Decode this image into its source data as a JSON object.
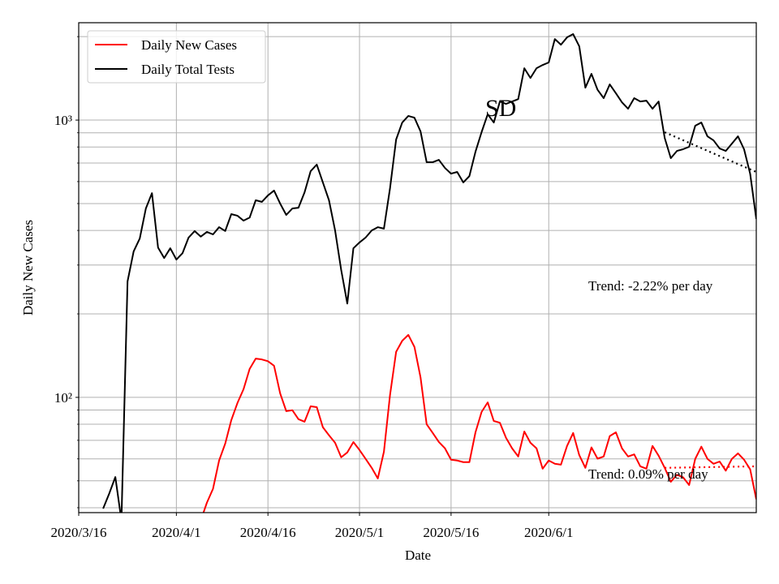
{
  "chart_data": {
    "type": "line",
    "x_label": "Date",
    "y_label": "Daily New Cases",
    "log_y": true,
    "grid": true,
    "legend": "upper left",
    "xlim": [
      "2020/3/16",
      "2020/7/5"
    ],
    "xticks": [
      "2020/3/16",
      "2020/4/1",
      "2020/4/16",
      "2020/5/1",
      "2020/5/16",
      "2020/6/1"
    ],
    "ylim": [
      38.4,
      2245
    ],
    "yticks": [
      {
        "value": 100,
        "label": "10²"
      },
      {
        "value": 1000,
        "label": "10³"
      }
    ],
    "yminor_ticks": [
      40,
      50,
      60,
      70,
      80,
      90,
      200,
      300,
      400,
      500,
      600,
      700,
      800,
      900,
      2000
    ],
    "x": [
      "2020/3/20",
      "2020/3/21",
      "2020/3/22",
      "2020/3/23",
      "2020/3/24",
      "2020/3/25",
      "2020/3/26",
      "2020/3/27",
      "2020/3/28",
      "2020/3/29",
      "2020/3/30",
      "2020/3/31",
      "2020/4/1",
      "2020/4/2",
      "2020/4/3",
      "2020/4/4",
      "2020/4/5",
      "2020/4/6",
      "2020/4/7",
      "2020/4/8",
      "2020/4/9",
      "2020/4/10",
      "2020/4/11",
      "2020/4/12",
      "2020/4/13",
      "2020/4/14",
      "2020/4/15",
      "2020/4/16",
      "2020/4/17",
      "2020/4/18",
      "2020/4/19",
      "2020/4/20",
      "2020/4/21",
      "2020/4/22",
      "2020/4/23",
      "2020/4/24",
      "2020/4/25",
      "2020/4/26",
      "2020/4/27",
      "2020/4/28",
      "2020/4/29",
      "2020/4/30",
      "2020/5/1",
      "2020/5/2",
      "2020/5/3",
      "2020/5/4",
      "2020/5/5",
      "2020/5/6",
      "2020/5/7",
      "2020/5/8",
      "2020/5/9",
      "2020/5/10",
      "2020/5/11",
      "2020/5/12",
      "2020/5/13",
      "2020/5/14",
      "2020/5/15",
      "2020/5/16",
      "2020/5/17",
      "2020/5/18",
      "2020/5/19",
      "2020/5/20",
      "2020/5/21",
      "2020/5/22",
      "2020/5/23",
      "2020/5/24",
      "2020/5/25",
      "2020/5/26",
      "2020/5/27",
      "2020/5/28",
      "2020/5/29",
      "2020/5/30",
      "2020/5/31",
      "2020/6/1",
      "2020/6/2",
      "2020/6/3",
      "2020/6/4",
      "2020/6/5",
      "2020/6/6",
      "2020/6/7",
      "2020/6/8",
      "2020/6/9",
      "2020/6/10",
      "2020/6/11",
      "2020/6/12",
      "2020/6/13",
      "2020/6/14",
      "2020/6/15",
      "2020/6/16",
      "2020/6/17",
      "2020/6/18",
      "2020/6/19",
      "2020/6/20",
      "2020/6/21",
      "2020/6/22",
      "2020/6/23",
      "2020/6/24",
      "2020/6/25",
      "2020/6/26",
      "2020/6/27",
      "2020/6/28",
      "2020/6/29",
      "2020/6/30",
      "2020/7/1",
      "2020/7/2",
      "2020/7/3",
      "2020/7/4",
      "2020/7/5"
    ],
    "series": [
      {
        "name": "Daily New Cases",
        "color": "#ff0000",
        "values": [
          null,
          null,
          null,
          null,
          null,
          null,
          null,
          null,
          null,
          null,
          null,
          null,
          null,
          null,
          null,
          null,
          36,
          41.7,
          46.8,
          59.2,
          68.1,
          82.8,
          95.4,
          107,
          126.6,
          138,
          137,
          135,
          130,
          103.4,
          89.2,
          89.9,
          83.4,
          81.7,
          92.9,
          92.2,
          78,
          73,
          68.6,
          60.8,
          63.3,
          69,
          64.6,
          60,
          55.7,
          51,
          63.7,
          102,
          146,
          160,
          168,
          152,
          118,
          80,
          74.4,
          69,
          65.5,
          59.6,
          59.2,
          58.4,
          58.4,
          74.8,
          88.6,
          95.9,
          82.2,
          81,
          71.5,
          65.5,
          61.2,
          75.3,
          68.6,
          65.5,
          55.3,
          59.2,
          57.6,
          57.2,
          66.8,
          74.4,
          61.9,
          55.7,
          66,
          60.1,
          61.2,
          72.5,
          74.8,
          65.5,
          61.2,
          62.3,
          56.4,
          55.3,
          66.8,
          61.6,
          55.7,
          49.6,
          52.6,
          51.5,
          48.3,
          60,
          66.4,
          60,
          57.6,
          58.7,
          54.4,
          60,
          62.8,
          59.6,
          55,
          42.9
        ]
      },
      {
        "name": "Daily Total Tests",
        "color": "#000000",
        "values": [
          39.7,
          45,
          51.6,
          36,
          262,
          336,
          374,
          480,
          545,
          347,
          318,
          345,
          314,
          331,
          377,
          398,
          380,
          395,
          387,
          411,
          398,
          458,
          452,
          434,
          445,
          514,
          507,
          535,
          557,
          500,
          455,
          480,
          483,
          549,
          655,
          691,
          596,
          514,
          400,
          288,
          218,
          345,
          362,
          377,
          400,
          411,
          406,
          568,
          851,
          980,
          1035,
          1020,
          910,
          705,
          705,
          719,
          672,
          641,
          650,
          596,
          628,
          769,
          905,
          1049,
          980,
          1167,
          1144,
          1167,
          1190,
          1538,
          1419,
          1538,
          1580,
          1614,
          1960,
          1870,
          1988,
          2042,
          1846,
          1309,
          1468,
          1286,
          1200,
          1345,
          1250,
          1159,
          1099,
          1200,
          1167,
          1175,
          1099,
          1167,
          862,
          729,
          774,
          785,
          801,
          954,
          980,
          874,
          845,
          790,
          774,
          822,
          874,
          785,
          640,
          440
        ]
      }
    ],
    "trends": [
      {
        "color": "#000000",
        "x": [
          "2020/6/20",
          "2020/7/5"
        ],
        "values": [
          904,
          650
        ]
      },
      {
        "color": "#ff0000",
        "x": [
          "2020/6/20",
          "2020/7/5"
        ],
        "values": [
          55.7,
          56.4
        ]
      }
    ],
    "annotations": [
      "SD",
      "Trend: -2.22% per day",
      "Trend: 0.09% per day"
    ]
  }
}
